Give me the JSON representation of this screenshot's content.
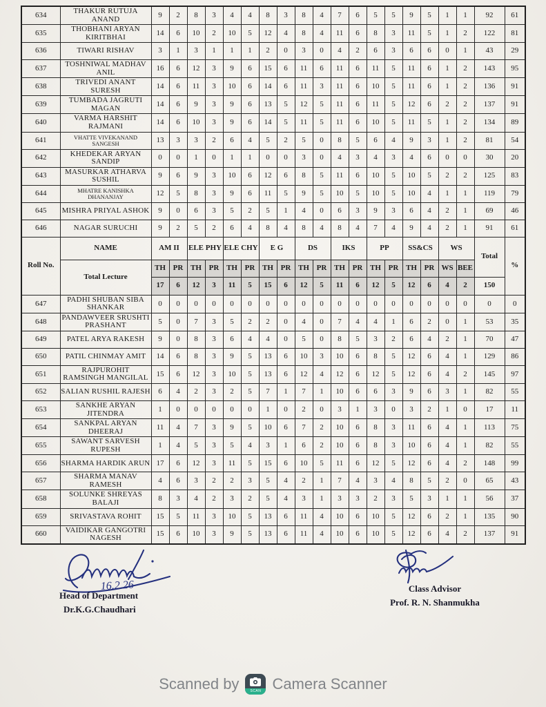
{
  "table": {
    "header": {
      "roll_label": "Roll No.",
      "name_label": "NAME",
      "total_lecture_label": "Total Lecture",
      "total_label": "Total",
      "percent_label": "%",
      "total_lectures": "150",
      "subjects": [
        {
          "name": "AM II",
          "sub": [
            "TH",
            "PR"
          ],
          "lectures": [
            "17",
            "6"
          ]
        },
        {
          "name": "ELE PHY",
          "sub": [
            "TH",
            "PR"
          ],
          "lectures": [
            "12",
            "3"
          ]
        },
        {
          "name": "ELE CHY",
          "sub": [
            "TH",
            "PR"
          ],
          "lectures": [
            "11",
            "5"
          ]
        },
        {
          "name": "E G",
          "sub": [
            "TH",
            "PR"
          ],
          "lectures": [
            "15",
            "6"
          ]
        },
        {
          "name": "DS",
          "sub": [
            "TH",
            "PR"
          ],
          "lectures": [
            "12",
            "5"
          ]
        },
        {
          "name": "IKS",
          "sub": [
            "TH",
            "PR"
          ],
          "lectures": [
            "11",
            "6"
          ]
        },
        {
          "name": "PP",
          "sub": [
            "TH",
            "PR"
          ],
          "lectures": [
            "12",
            "5"
          ]
        },
        {
          "name": "SS&CS",
          "sub": [
            "TH",
            "PR"
          ],
          "lectures": [
            "12",
            "6"
          ]
        },
        {
          "name": "WS",
          "sub": [
            "WS",
            "BEE"
          ],
          "lectures": [
            "4",
            "2"
          ]
        }
      ]
    },
    "rows_top": [
      {
        "roll": "634",
        "name": "THAKUR RUTUJA ANAND",
        "marks": [
          9,
          2,
          8,
          3,
          4,
          4,
          8,
          3,
          8,
          4,
          7,
          6,
          5,
          5,
          9,
          5,
          1,
          1
        ],
        "total": "92",
        "pct": "61"
      },
      {
        "roll": "635",
        "name": "THOBHANI ARYAN KIRITBHAI",
        "marks": [
          14,
          6,
          10,
          2,
          10,
          5,
          12,
          4,
          8,
          4,
          11,
          6,
          8,
          3,
          11,
          5,
          1,
          2
        ],
        "total": "122",
        "pct": "81"
      },
      {
        "roll": "636",
        "name": "TIWARI RISHAV",
        "marks": [
          3,
          1,
          3,
          1,
          1,
          1,
          2,
          0,
          3,
          0,
          4,
          2,
          6,
          3,
          6,
          6,
          0,
          1
        ],
        "total": "43",
        "pct": "29"
      },
      {
        "roll": "637",
        "name": "TOSHNIWAL MADHAV ANIL",
        "marks": [
          16,
          6,
          12,
          3,
          9,
          6,
          15,
          6,
          11,
          6,
          11,
          6,
          11,
          5,
          11,
          6,
          1,
          2
        ],
        "total": "143",
        "pct": "95"
      },
      {
        "roll": "638",
        "name": "TRIVEDI ANANT SURESH",
        "marks": [
          14,
          6,
          11,
          3,
          10,
          6,
          14,
          6,
          11,
          3,
          11,
          6,
          10,
          5,
          11,
          6,
          1,
          2
        ],
        "total": "136",
        "pct": "91"
      },
      {
        "roll": "639",
        "name": "TUMBADA JAGRUTI MAGAN",
        "marks": [
          14,
          6,
          9,
          3,
          9,
          6,
          13,
          5,
          12,
          5,
          11,
          6,
          11,
          5,
          12,
          6,
          2,
          2
        ],
        "total": "137",
        "pct": "91"
      },
      {
        "roll": "640",
        "name": "VARMA HARSHIT RAJMANI",
        "marks": [
          14,
          6,
          10,
          3,
          9,
          6,
          14,
          5,
          11,
          5,
          11,
          6,
          10,
          5,
          11,
          5,
          1,
          2
        ],
        "total": "134",
        "pct": "89"
      },
      {
        "roll": "641",
        "name": "VHATTE VIVEKANAND SANGESH",
        "small": true,
        "marks": [
          13,
          3,
          3,
          2,
          6,
          4,
          5,
          2,
          5,
          0,
          8,
          5,
          6,
          4,
          9,
          3,
          1,
          2
        ],
        "total": "81",
        "pct": "54"
      },
      {
        "roll": "642",
        "name": "KHEDEKAR ARYAN SANDIP",
        "marks": [
          0,
          0,
          1,
          0,
          1,
          1,
          0,
          0,
          3,
          0,
          4,
          3,
          4,
          3,
          4,
          6,
          0,
          0
        ],
        "total": "30",
        "pct": "20"
      },
      {
        "roll": "643",
        "name": "MASURKAR ATHARVA SUSHIL",
        "marks": [
          9,
          6,
          9,
          3,
          10,
          6,
          12,
          6,
          8,
          5,
          11,
          6,
          10,
          5,
          10,
          5,
          2,
          2
        ],
        "total": "125",
        "pct": "83"
      },
      {
        "roll": "644",
        "name": "MHATRE KANISHKA DHANANJAY",
        "small": true,
        "marks": [
          12,
          5,
          8,
          3,
          9,
          6,
          11,
          5,
          9,
          5,
          10,
          5,
          10,
          5,
          10,
          4,
          1,
          1
        ],
        "total": "119",
        "pct": "79"
      },
      {
        "roll": "645",
        "name": "MISHRA PRIYAL ASHOK",
        "marks": [
          9,
          0,
          6,
          3,
          5,
          2,
          5,
          1,
          4,
          0,
          6,
          3,
          9,
          3,
          6,
          4,
          2,
          1
        ],
        "total": "69",
        "pct": "46"
      },
      {
        "roll": "646",
        "name": "NAGAR SURUCHI",
        "marks": [
          9,
          2,
          5,
          2,
          6,
          4,
          8,
          4,
          8,
          4,
          8,
          4,
          7,
          4,
          9,
          4,
          2,
          1
        ],
        "total": "91",
        "pct": "61"
      }
    ],
    "rows_bottom": [
      {
        "roll": "647",
        "name": "PADHI SHUBAN SIBA SHANKAR",
        "marks": [
          0,
          0,
          0,
          0,
          0,
          0,
          0,
          0,
          0,
          0,
          0,
          0,
          0,
          0,
          0,
          0,
          0,
          0
        ],
        "total": "0",
        "pct": "0"
      },
      {
        "roll": "648",
        "name": "PANDAWVEER SRUSHTI PRASHANT",
        "marks": [
          5,
          0,
          7,
          3,
          5,
          2,
          2,
          0,
          4,
          0,
          7,
          4,
          4,
          1,
          6,
          2,
          0,
          1
        ],
        "total": "53",
        "pct": "35"
      },
      {
        "roll": "649",
        "name": "PATEL ARYA RAKESH",
        "marks": [
          9,
          0,
          8,
          3,
          6,
          4,
          4,
          0,
          5,
          0,
          8,
          5,
          3,
          2,
          6,
          4,
          2,
          1
        ],
        "total": "70",
        "pct": "47"
      },
      {
        "roll": "650",
        "name": "PATIL CHINMAY AMIT",
        "marks": [
          14,
          6,
          8,
          3,
          9,
          5,
          13,
          6,
          10,
          3,
          10,
          6,
          8,
          5,
          12,
          6,
          4,
          1
        ],
        "total": "129",
        "pct": "86"
      },
      {
        "roll": "651",
        "name": "RAJPUROHIT RAMSINGH MANGILAL",
        "marks": [
          15,
          6,
          12,
          3,
          10,
          5,
          13,
          6,
          12,
          4,
          12,
          6,
          12,
          5,
          12,
          6,
          4,
          2
        ],
        "total": "145",
        "pct": "97"
      },
      {
        "roll": "652",
        "name": "SALIAN RUSHIL RAJESH",
        "marks": [
          6,
          4,
          2,
          3,
          2,
          5,
          7,
          1,
          7,
          1,
          10,
          6,
          6,
          3,
          9,
          6,
          3,
          1
        ],
        "total": "82",
        "pct": "55"
      },
      {
        "roll": "653",
        "name": "SANKHE ARYAN JITENDRA",
        "marks": [
          1,
          0,
          0,
          0,
          0,
          0,
          1,
          0,
          2,
          0,
          3,
          1,
          3,
          0,
          3,
          2,
          1,
          0
        ],
        "total": "17",
        "pct": "11"
      },
      {
        "roll": "654",
        "name": "SANKPAL ARYAN DHEERAJ",
        "marks": [
          11,
          4,
          7,
          3,
          9,
          5,
          10,
          6,
          7,
          2,
          10,
          6,
          8,
          3,
          11,
          6,
          4,
          1
        ],
        "total": "113",
        "pct": "75"
      },
      {
        "roll": "655",
        "name": "SAWANT SARVESH RUPESH",
        "marks": [
          1,
          4,
          5,
          3,
          5,
          4,
          3,
          1,
          6,
          2,
          10,
          6,
          8,
          3,
          10,
          6,
          4,
          1
        ],
        "total": "82",
        "pct": "55"
      },
      {
        "roll": "656",
        "name": "SHARMA HARDIK ARUN",
        "marks": [
          17,
          6,
          12,
          3,
          11,
          5,
          15,
          6,
          10,
          5,
          11,
          6,
          12,
          5,
          12,
          6,
          4,
          2
        ],
        "total": "148",
        "pct": "99"
      },
      {
        "roll": "657",
        "name": "SHARMA MANAV RAMESH",
        "marks": [
          4,
          6,
          3,
          2,
          2,
          3,
          5,
          4,
          2,
          1,
          7,
          4,
          3,
          4,
          8,
          5,
          2,
          0
        ],
        "total": "65",
        "pct": "43"
      },
      {
        "roll": "658",
        "name": "SOLUNKE SHREYAS BALAJI",
        "marks": [
          8,
          3,
          4,
          2,
          3,
          2,
          5,
          4,
          3,
          1,
          3,
          3,
          2,
          3,
          5,
          3,
          1,
          1
        ],
        "total": "56",
        "pct": "37"
      },
      {
        "roll": "659",
        "name": "SRIVASTAVA ROHIT",
        "marks": [
          15,
          5,
          11,
          3,
          10,
          5,
          13,
          6,
          11,
          4,
          10,
          6,
          10,
          5,
          12,
          6,
          2,
          1
        ],
        "total": "135",
        "pct": "90"
      },
      {
        "roll": "660",
        "name": "VAIDIKAR GANGOTRI NAGESH",
        "marks": [
          15,
          6,
          10,
          3,
          9,
          5,
          13,
          6,
          11,
          4,
          10,
          6,
          10,
          5,
          12,
          6,
          4,
          2
        ],
        "total": "137",
        "pct": "91"
      }
    ]
  },
  "signatures": {
    "left": {
      "date": "16.2.26",
      "role": "Head of Department",
      "name": "Dr.K.G.Chaudhari"
    },
    "right": {
      "role": "Class Advisor",
      "name": "Prof. R. N. Shanmukha"
    }
  },
  "footer": {
    "prefix": "Scanned by",
    "suffix": "Camera Scanner",
    "icon_label": "SCAN",
    "icon_bg": "#3d4a53",
    "icon_band": "#2ab08c"
  }
}
